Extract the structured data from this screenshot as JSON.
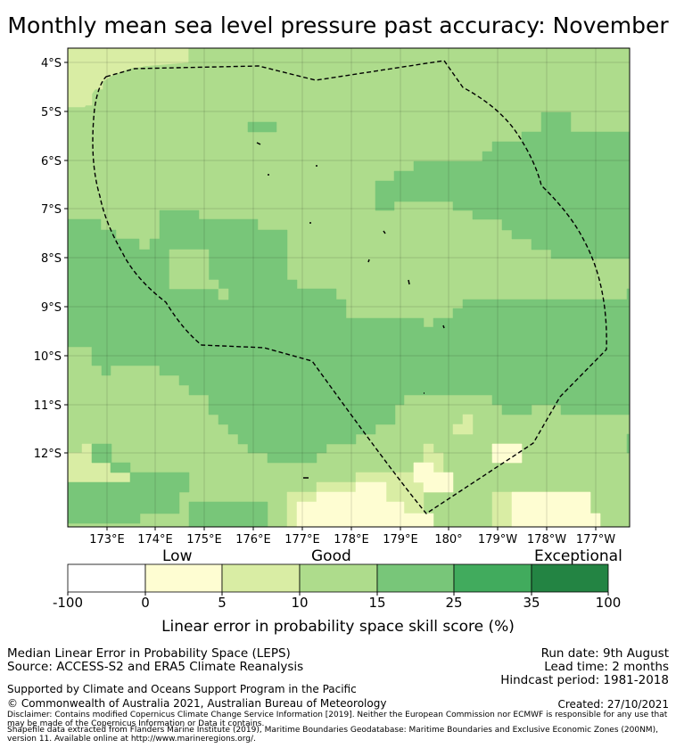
{
  "title": "Monthly mean sea level pressure past accuracy: November",
  "map": {
    "lat_labels": [
      "4°S",
      "5°S",
      "6°S",
      "7°S",
      "8°S",
      "9°S",
      "10°S",
      "11°S",
      "12°S"
    ],
    "lon_labels": [
      "173°E",
      "174°E",
      "175°E",
      "176°E",
      "177°E",
      "178°E",
      "179°E",
      "180°",
      "179°W",
      "178°W",
      "177°W"
    ],
    "boundary_style": "dashed black line (Tuvalu EEZ)",
    "category_colors": {
      "0-5": "#fefdd2",
      "5-10": "#d9eda4",
      "10-15": "#aedc8c",
      "15-25": "#78c679",
      "25-35": "#41ab5d",
      "35-100": "#238443"
    }
  },
  "colorbar": {
    "headings": [
      "Low",
      "Good",
      "Exceptional"
    ],
    "ticks": [
      "-100",
      "0",
      "5",
      "10",
      "15",
      "25",
      "35",
      "100"
    ],
    "colors": [
      "#ffffff",
      "#fefdd2",
      "#d9eda4",
      "#aedc8c",
      "#78c679",
      "#41ab5d",
      "#238443"
    ],
    "label": "Linear error in probability space skill score (%)"
  },
  "info": {
    "method": "Median Linear Error in Probability Space (LEPS)",
    "source": "Source: ACCESS-S2 and ERA5 Climate Reanalysis",
    "run_date": "Run date: 9th August",
    "lead_time": "Lead time: 2 months",
    "hindcast": "Hindcast period: 1981-2018",
    "support": "Supported by Climate and Oceans Support Program in the Pacific",
    "copyright": "© Commonwealth of Australia 2021, Australian Bureau of Meteorology",
    "created": "Created: 27/10/2021",
    "disclaimer": "Disclaimer: Contains modified Copernicus Climate Change Service Information [2019]. Neither the European Commission nor ECMWF is responsible for any use that may be made of the Copernicus Information or Data it contains.",
    "shapefile": "Shapefile data extracted from Flanders Marine Institute (2019), Maritime Boundaries Geodatabase: Maritime Boundaries and Exclusive Economic Zones (200NM), version 11. Available online at http://www.marineregions.org/."
  }
}
